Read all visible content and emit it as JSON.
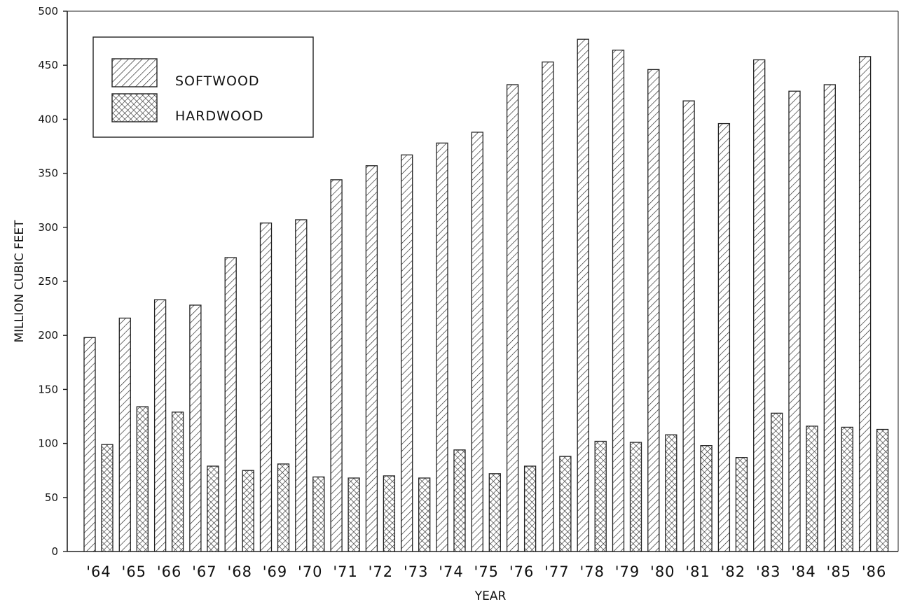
{
  "chart_data": {
    "type": "bar",
    "title": "",
    "xlabel": "YEAR",
    "ylabel": "MILLION CUBIC FEET",
    "ylim": [
      0,
      500
    ],
    "yticks": [
      0,
      50,
      100,
      150,
      200,
      250,
      300,
      350,
      400,
      450,
      500
    ],
    "grid": false,
    "legend_position": "top-left",
    "categories": [
      "'64",
      "'65",
      "'66",
      "'67",
      "'68",
      "'69",
      "'70",
      "'71",
      "'72",
      "'73",
      "'74",
      "'75",
      "'76",
      "'77",
      "'78",
      "'79",
      "'80",
      "'81",
      "'82",
      "'83",
      "'84",
      "'85",
      "'86"
    ],
    "series": [
      {
        "name": "SOFTWOOD",
        "pattern": "diagonal-hatch",
        "values": [
          198,
          216,
          233,
          228,
          272,
          304,
          307,
          344,
          357,
          367,
          378,
          388,
          432,
          453,
          474,
          464,
          446,
          417,
          396,
          455,
          426,
          432,
          458
        ]
      },
      {
        "name": "HARDWOOD",
        "pattern": "cross-hatch",
        "values": [
          99,
          134,
          129,
          79,
          75,
          81,
          69,
          68,
          70,
          68,
          94,
          72,
          79,
          88,
          102,
          101,
          108,
          98,
          87,
          128,
          116,
          115,
          113
        ]
      }
    ]
  }
}
